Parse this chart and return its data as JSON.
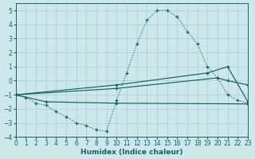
{
  "background_color": "#cce8ea",
  "grid_color": "#a8cdd0",
  "line_color": "#1a6060",
  "xlabel": "Humidex (Indice chaleur)",
  "xlim": [
    0,
    23
  ],
  "ylim": [
    -4,
    5.5
  ],
  "yticks": [
    -4,
    -3,
    -2,
    -1,
    0,
    1,
    2,
    3,
    4,
    5
  ],
  "xticks": [
    0,
    1,
    2,
    3,
    4,
    5,
    6,
    7,
    8,
    9,
    10,
    11,
    12,
    13,
    14,
    15,
    16,
    17,
    18,
    19,
    20,
    21,
    22,
    23
  ],
  "curve1_x": [
    0,
    1,
    2,
    3,
    4,
    5,
    6,
    7,
    8,
    9,
    10,
    11,
    12,
    13,
    14,
    15,
    16,
    17,
    18,
    19,
    20,
    21,
    22,
    23
  ],
  "curve1_y": [
    -1.0,
    -1.2,
    -1.6,
    -1.75,
    -2.2,
    -2.55,
    -3.0,
    -3.2,
    -3.5,
    -3.6,
    -1.4,
    0.55,
    2.6,
    4.3,
    5.0,
    5.0,
    4.55,
    3.5,
    2.6,
    1.0,
    0.2,
    -1.0,
    -1.4,
    -1.6
  ],
  "line2_x": [
    0,
    3,
    10,
    23
  ],
  "line2_y": [
    -1.0,
    -1.5,
    -1.6,
    -1.65
  ],
  "line3_x": [
    0,
    10,
    20,
    21,
    23
  ],
  "line3_y": [
    -1.0,
    -0.55,
    0.2,
    0.0,
    -0.3
  ],
  "line4_x": [
    0,
    10,
    19,
    21,
    23
  ],
  "line4_y": [
    -1.0,
    -0.3,
    0.55,
    1.0,
    -1.5
  ]
}
